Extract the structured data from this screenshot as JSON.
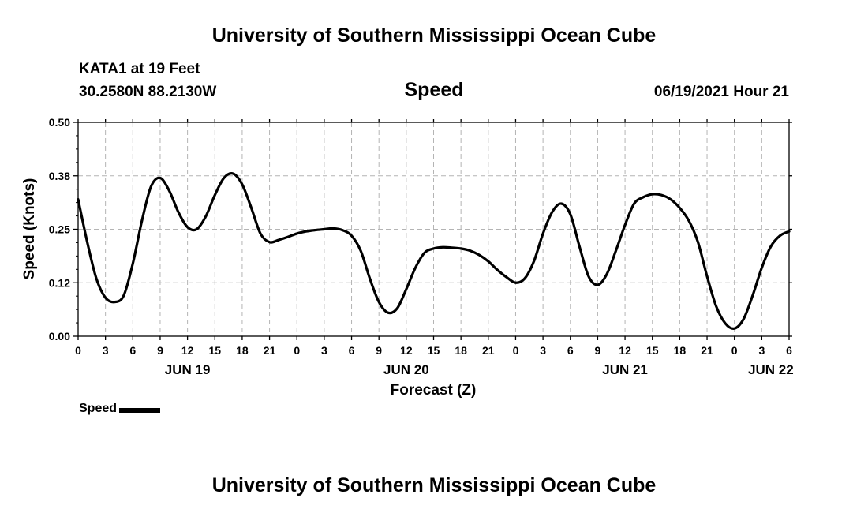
{
  "header": {
    "title": "University of Southern Mississippi Ocean Cube",
    "station": "KATA1 at 19 Feet",
    "coords": "30.2580N  88.2130W",
    "datetime": "06/19/2021 Hour 21"
  },
  "footer": {
    "title": "University of Southern Mississippi Ocean Cube"
  },
  "chart_data": {
    "type": "line",
    "title": "Speed",
    "xlabel": "Forecast (Z)",
    "ylabel": "Speed (Knots)",
    "xlim": [
      0,
      78
    ],
    "ylim": [
      0,
      0.5
    ],
    "yticks": [
      "0.00",
      "0.12",
      "0.25",
      "0.38",
      "0.50"
    ],
    "xtick_labels": [
      "0",
      "3",
      "6",
      "9",
      "12",
      "15",
      "18",
      "21",
      "0",
      "3",
      "6",
      "9",
      "12",
      "15",
      "18",
      "21",
      "0",
      "3",
      "6",
      "9",
      "12",
      "15",
      "18",
      "21",
      "0",
      "3",
      "6"
    ],
    "date_labels": [
      {
        "label": "JUN 19",
        "hour": 12
      },
      {
        "label": "JUN 20",
        "hour": 36
      },
      {
        "label": "JUN 21",
        "hour": 60
      },
      {
        "label": "JUN 22",
        "hour": 76
      }
    ],
    "grid": true,
    "legend": "bottom-left",
    "series": [
      {
        "name": "Speed",
        "color": "#000000",
        "x": [
          0,
          1,
          2,
          3,
          4,
          5,
          6,
          7,
          8,
          9,
          10,
          11,
          12,
          13,
          14,
          15,
          16,
          17,
          18,
          19,
          20,
          21,
          22,
          23,
          24,
          25,
          26,
          27,
          28,
          29,
          30,
          31,
          32,
          33,
          34,
          35,
          36,
          37,
          38,
          39,
          40,
          41,
          42,
          43,
          44,
          45,
          46,
          47,
          48,
          49,
          50,
          51,
          52,
          53,
          54,
          55,
          56,
          57,
          58,
          59,
          60,
          61,
          62,
          63,
          64,
          65,
          66,
          67,
          68,
          69,
          70,
          71,
          72,
          73,
          74,
          75,
          76,
          77,
          78
        ],
        "values": [
          0.32,
          0.22,
          0.135,
          0.09,
          0.08,
          0.095,
          0.17,
          0.27,
          0.35,
          0.37,
          0.34,
          0.29,
          0.255,
          0.25,
          0.28,
          0.33,
          0.37,
          0.38,
          0.355,
          0.3,
          0.24,
          0.22,
          0.225,
          0.232,
          0.24,
          0.245,
          0.248,
          0.25,
          0.252,
          0.248,
          0.235,
          0.2,
          0.135,
          0.08,
          0.055,
          0.065,
          0.11,
          0.16,
          0.195,
          0.205,
          0.208,
          0.207,
          0.205,
          0.2,
          0.19,
          0.175,
          0.155,
          0.138,
          0.125,
          0.135,
          0.175,
          0.24,
          0.29,
          0.31,
          0.285,
          0.21,
          0.14,
          0.12,
          0.145,
          0.2,
          0.26,
          0.31,
          0.325,
          0.332,
          0.33,
          0.32,
          0.3,
          0.27,
          0.22,
          0.14,
          0.07,
          0.03,
          0.018,
          0.04,
          0.095,
          0.16,
          0.21,
          0.235,
          0.245
        ]
      }
    ]
  }
}
